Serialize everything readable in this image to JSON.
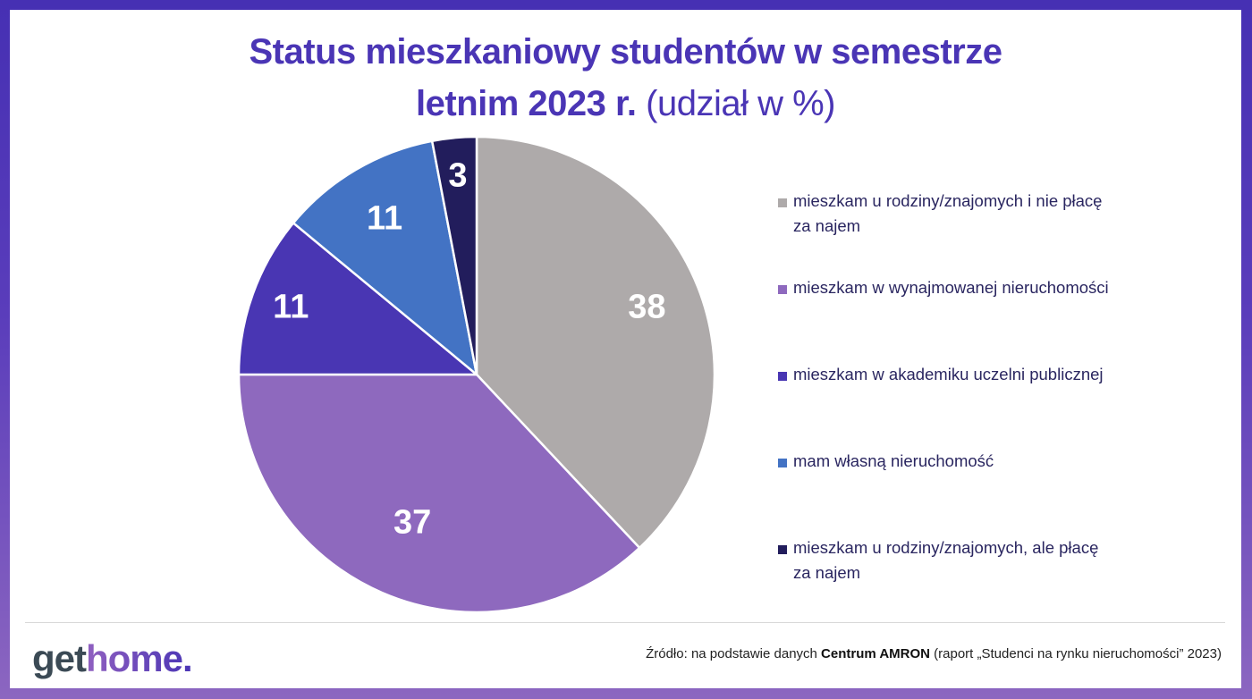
{
  "header": {
    "title_line1": "Status mieszkaniowy studentów w semestrze",
    "title_line2_bold": "letnim 2023 r.",
    "title_line2_light": "(udział w %)"
  },
  "chart_data": {
    "type": "pie",
    "title": "Status mieszkaniowy studentów w semestrze letnim 2023 r. (udział w %)",
    "categories": [
      "mieszkam u rodziny/znajomych i nie płacę za najem",
      "mieszkam w wynajmowanej nieruchomości",
      "mieszkam w akademiku uczelni publicznej",
      "mam własną nieruchomość",
      "mieszkam u rodziny/znajomych, ale płacę za najem"
    ],
    "values": [
      38,
      37,
      11,
      11,
      3
    ],
    "colors": [
      "#aeaaaa",
      "#8e69be",
      "#4936b3",
      "#4373c4",
      "#221d5c"
    ],
    "unit": "%",
    "start_angle": "12 o'clock, clockwise",
    "legend_position": "right",
    "data_labels": [
      "38",
      "37",
      "11",
      "11",
      "3"
    ]
  },
  "legend": {
    "items": [
      {
        "label": "mieszkam u rodziny/znajomych i nie płacę za najem",
        "color": "#aeaaaa"
      },
      {
        "label": "mieszkam w wynajmowanej nieruchomości",
        "color": "#8e69be"
      },
      {
        "label": "mieszkam w akademiku uczelni publicznej",
        "color": "#4936b3"
      },
      {
        "label": "mam własną nieruchomość",
        "color": "#4373c4"
      },
      {
        "label": "mieszkam u rodziny/znajomych, ale płacę za najem",
        "color": "#221d5c"
      }
    ]
  },
  "footer": {
    "logo_get": "get",
    "logo_home": "home.",
    "source_prefix": "Źródło: na podstawie danych ",
    "source_bold": "Centrum AMRON",
    "source_suffix": " (raport „Studenci na rynku nieruchomości” 2023)"
  },
  "colors": {
    "title": "#4a35b5",
    "frame_top": "#4630b3",
    "frame_bottom": "#8c66c0",
    "legend_text": "#2a2660"
  }
}
